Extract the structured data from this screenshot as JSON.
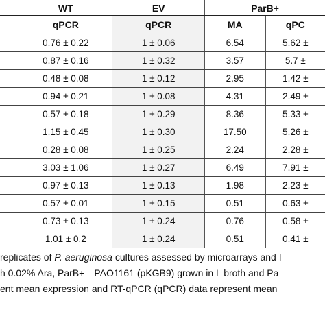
{
  "table": {
    "group_headers": [
      "WT",
      "EV",
      "ParB+"
    ],
    "sub_headers": [
      "qPCR",
      "qPCR",
      "MA",
      "qPC"
    ],
    "rows": [
      {
        "wt": "0.76 ± 0.22",
        "ev": "1 ± 0.06",
        "ma": "6.54",
        "qpcr": "5.62 ±"
      },
      {
        "wt": "0.87 ± 0.16",
        "ev": "1 ± 0.32",
        "ma": "3.57",
        "qpcr": "5.7 ±"
      },
      {
        "wt": "0.48 ± 0.08",
        "ev": "1 ± 0.12",
        "ma": "2.95",
        "qpcr": "1.42 ±"
      },
      {
        "wt": "0.94 ± 0.21",
        "ev": "1 ± 0.08",
        "ma": "4.31",
        "qpcr": "2.49 ±"
      },
      {
        "wt": "0.57 ± 0.18",
        "ev": "1 ± 0.29",
        "ma": "8.36",
        "qpcr": "5.33 ±"
      },
      {
        "wt": "1.15 ± 0.45",
        "ev": "1 ± 0.30",
        "ma": "17.50",
        "qpcr": "5.26 ±"
      },
      {
        "wt": "0.28 ± 0.08",
        "ev": "1 ± 0.25",
        "ma": "2.24",
        "qpcr": "2.28 ±"
      },
      {
        "wt": "3.03 ± 1.06",
        "ev": "1 ± 0.27",
        "ma": "6.49",
        "qpcr": "7.91 ±"
      },
      {
        "wt": "0.97 ± 0.13",
        "ev": "1 ± 0.13",
        "ma": "1.98",
        "qpcr": "2.23 ±"
      },
      {
        "wt": "0.57 ± 0.01",
        "ev": "1 ± 0.15",
        "ma": "0.51",
        "qpcr": "0.63 ±"
      },
      {
        "wt": "0.73 ± 0.13",
        "ev": "1 ± 0.24",
        "ma": "0.76",
        "qpcr": "0.58 ±"
      },
      {
        "wt": "1.01 ± 0.2",
        "ev": "1 ± 0.24",
        "ma": "0.51",
        "qpcr": "0.41 ±"
      }
    ]
  },
  "caption": {
    "line1_pre": "replicates of ",
    "line1_italic": "P. aeruginosa",
    "line1_post": " cultures assessed by microarrays and I",
    "line2": "h 0.02% Ara, ParB+—PAO1161 (pKGB9) grown in L broth and Pa",
    "line3": "ent mean expression and RT-qPCR (qPCR) data represent mean"
  }
}
